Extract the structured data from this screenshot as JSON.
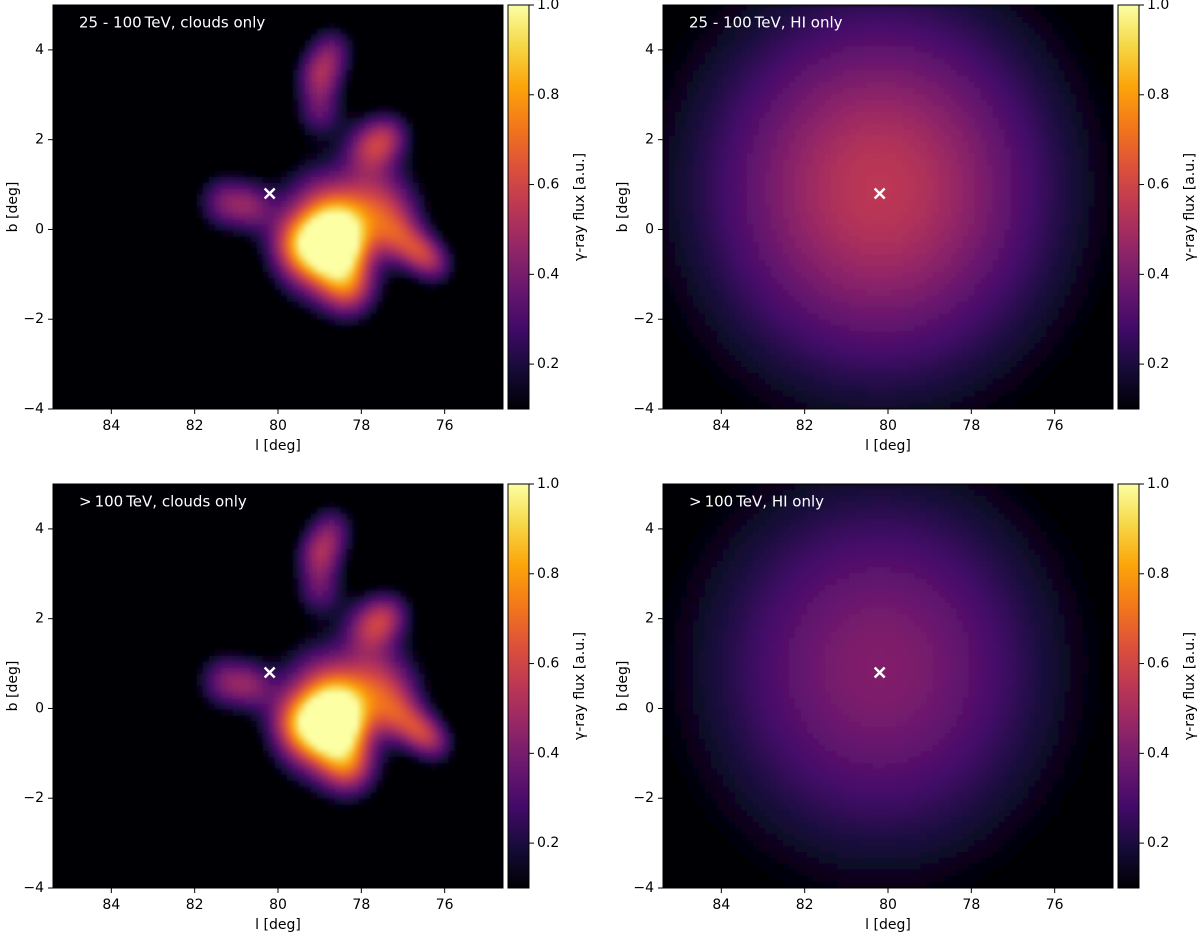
{
  "chart_data": [
    {
      "type": "heatmap",
      "title": "25 - 100 TeV, clouds only",
      "xlabel": "l [deg]",
      "ylabel": "b [deg]",
      "xlim": [
        85.4,
        74.6
      ],
      "ylim": [
        -4,
        5
      ],
      "xticks": [
        84,
        82,
        80,
        78,
        76
      ],
      "yticks": [
        {
          "value": -4,
          "label": "−4"
        },
        {
          "value": -2,
          "label": "−2"
        },
        0,
        2,
        4
      ],
      "colormap": "inferno",
      "colorbar": {
        "label": "γ-ray flux [a.u.]",
        "lim": [
          0.1,
          1.0
        ],
        "ticks": [
          0.2,
          0.4,
          0.6,
          0.8,
          {
            "value": 1,
            "label": "1.0"
          }
        ]
      },
      "marker": {
        "x": 80.2,
        "y": 0.8
      },
      "sources": [
        {
          "x": 78.6,
          "y": -0.3,
          "sigma": 0.5,
          "amplitude": 0.8
        },
        {
          "x": 78.3,
          "y": -1.3,
          "sigma": 0.5,
          "amplitude": 0.55
        },
        {
          "x": 79.2,
          "y": -0.8,
          "sigma": 0.6,
          "amplitude": 0.4
        },
        {
          "x": 79.0,
          "y": 0.5,
          "sigma": 0.7,
          "amplitude": 0.4
        },
        {
          "x": 78.0,
          "y": 0.3,
          "sigma": 0.7,
          "amplitude": 0.35
        },
        {
          "x": 77.3,
          "y": 0.5,
          "sigma": 0.6,
          "amplitude": 0.3
        },
        {
          "x": 81.3,
          "y": 0.6,
          "sigma": 0.45,
          "amplitude": 0.35
        },
        {
          "x": 80.6,
          "y": 0.5,
          "sigma": 0.4,
          "amplitude": 0.3
        },
        {
          "x": 77.8,
          "y": 1.8,
          "sigma": 0.45,
          "amplitude": 0.4
        },
        {
          "x": 77.3,
          "y": 2.1,
          "sigma": 0.4,
          "amplitude": 0.3
        },
        {
          "x": 79.0,
          "y": 3.4,
          "sigma": 0.4,
          "amplitude": 0.4
        },
        {
          "x": 78.7,
          "y": 4.0,
          "sigma": 0.4,
          "amplitude": 0.3
        },
        {
          "x": 79.0,
          "y": 2.6,
          "sigma": 0.4,
          "amplitude": 0.3
        },
        {
          "x": 76.6,
          "y": -0.5,
          "sigma": 0.35,
          "amplitude": 0.35
        },
        {
          "x": 76.2,
          "y": -0.8,
          "sigma": 0.35,
          "amplitude": 0.3
        },
        {
          "x": 77.1,
          "y": -0.2,
          "sigma": 0.4,
          "amplitude": 0.3
        },
        {
          "x": 79.6,
          "y": -0.3,
          "sigma": 0.5,
          "amplitude": 0.35
        }
      ]
    },
    {
      "type": "heatmap",
      "title": "25 - 100 TeV, HI only",
      "xlabel": "l [deg]",
      "ylabel": "b [deg]",
      "xlim": [
        85.4,
        74.6
      ],
      "ylim": [
        -4,
        5
      ],
      "xticks": [
        84,
        82,
        80,
        78,
        76
      ],
      "yticks": [
        {
          "value": -4,
          "label": "−4"
        },
        {
          "value": -2,
          "label": "−2"
        },
        0,
        2,
        4
      ],
      "colormap": "inferno",
      "colorbar": {
        "label": "γ-ray flux [a.u.]",
        "lim": [
          0.1,
          1.0
        ],
        "ticks": [
          0.2,
          0.4,
          0.6,
          0.8,
          {
            "value": 1,
            "label": "1.0"
          }
        ]
      },
      "marker": {
        "x": 80.2,
        "y": 0.8
      },
      "sources": [
        {
          "x": 80.2,
          "y": 0.9,
          "sigma": 3.2,
          "amplitude": 0.55
        }
      ]
    },
    {
      "type": "heatmap",
      "title": "> 100 TeV, clouds only",
      "xlabel": "l [deg]",
      "ylabel": "b [deg]",
      "xlim": [
        85.4,
        74.6
      ],
      "ylim": [
        -4,
        5
      ],
      "xticks": [
        84,
        82,
        80,
        78,
        76
      ],
      "yticks": [
        {
          "value": -4,
          "label": "−4"
        },
        {
          "value": -2,
          "label": "−2"
        },
        0,
        2,
        4
      ],
      "colormap": "inferno",
      "colorbar": {
        "label": "γ-ray flux [a.u.]",
        "lim": [
          0.1,
          1.0
        ],
        "ticks": [
          0.2,
          0.4,
          0.6,
          0.8,
          {
            "value": 1,
            "label": "1.0"
          }
        ]
      },
      "marker": {
        "x": 80.2,
        "y": 0.8
      },
      "sources": [
        {
          "x": 78.6,
          "y": -0.3,
          "sigma": 0.5,
          "amplitude": 0.8
        },
        {
          "x": 78.3,
          "y": -1.3,
          "sigma": 0.5,
          "amplitude": 0.55
        },
        {
          "x": 79.2,
          "y": -0.8,
          "sigma": 0.6,
          "amplitude": 0.4
        },
        {
          "x": 79.0,
          "y": 0.5,
          "sigma": 0.7,
          "amplitude": 0.4
        },
        {
          "x": 78.0,
          "y": 0.3,
          "sigma": 0.7,
          "amplitude": 0.35
        },
        {
          "x": 77.3,
          "y": 0.5,
          "sigma": 0.6,
          "amplitude": 0.3
        },
        {
          "x": 81.3,
          "y": 0.6,
          "sigma": 0.45,
          "amplitude": 0.35
        },
        {
          "x": 80.6,
          "y": 0.5,
          "sigma": 0.4,
          "amplitude": 0.3
        },
        {
          "x": 77.8,
          "y": 1.8,
          "sigma": 0.45,
          "amplitude": 0.4
        },
        {
          "x": 77.3,
          "y": 2.1,
          "sigma": 0.4,
          "amplitude": 0.3
        },
        {
          "x": 79.0,
          "y": 3.4,
          "sigma": 0.4,
          "amplitude": 0.4
        },
        {
          "x": 78.7,
          "y": 4.0,
          "sigma": 0.4,
          "amplitude": 0.3
        },
        {
          "x": 79.0,
          "y": 2.6,
          "sigma": 0.4,
          "amplitude": 0.3
        },
        {
          "x": 76.6,
          "y": -0.5,
          "sigma": 0.35,
          "amplitude": 0.35
        },
        {
          "x": 76.2,
          "y": -0.8,
          "sigma": 0.35,
          "amplitude": 0.3
        },
        {
          "x": 77.1,
          "y": -0.2,
          "sigma": 0.4,
          "amplitude": 0.3
        },
        {
          "x": 79.6,
          "y": -0.3,
          "sigma": 0.5,
          "amplitude": 0.35
        }
      ]
    },
    {
      "type": "heatmap",
      "title": "> 100 TeV, HI only",
      "xlabel": "l [deg]",
      "ylabel": "b [deg]",
      "xlim": [
        85.4,
        74.6
      ],
      "ylim": [
        -4,
        5
      ],
      "xticks": [
        84,
        82,
        80,
        78,
        76
      ],
      "yticks": [
        {
          "value": -4,
          "label": "−4"
        },
        {
          "value": -2,
          "label": "−2"
        },
        0,
        2,
        4
      ],
      "colormap": "inferno",
      "colorbar": {
        "label": "γ-ray flux [a.u.]",
        "lim": [
          0.1,
          1.0
        ],
        "ticks": [
          0.2,
          0.4,
          0.6,
          0.8,
          {
            "value": 1,
            "label": "1.0"
          }
        ]
      },
      "marker": {
        "x": 80.2,
        "y": 0.8
      },
      "sources": [
        {
          "x": 80.2,
          "y": 0.9,
          "sigma": 3.2,
          "amplitude": 0.42
        }
      ]
    }
  ]
}
